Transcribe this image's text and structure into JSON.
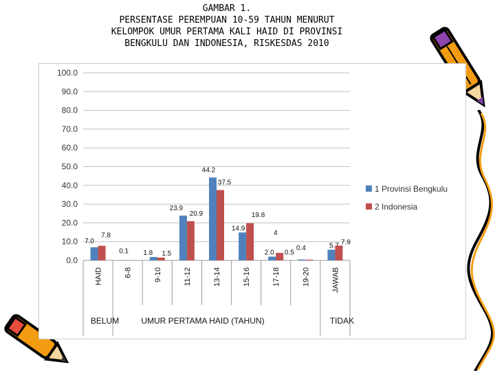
{
  "title": {
    "line1": "GAMBAR 1.",
    "line2": "PERSENTASE PEREMPUAN 10-59 TAHUN MENURUT",
    "line3": "KELOMPOK UMUR PERTAMA KALI HAID DI PROVINSI",
    "line4": "BENGKULU DAN INDONESIA, RISKESDAS 2010"
  },
  "chart_data": {
    "type": "bar",
    "categories": [
      "HAID",
      "6-8",
      "9-10",
      "11-12",
      "13-14",
      "15-16",
      "17-18",
      "19-20",
      "JAWAB"
    ],
    "category_groups": [
      {
        "label": "BELUM",
        "categories": [
          "HAID"
        ]
      },
      {
        "label": "UMUR PERTAMA HAID (TAHUN)",
        "categories": [
          "6-8",
          "9-10",
          "11-12",
          "13-14",
          "15-16",
          "17-18",
          "19-20"
        ]
      },
      {
        "label": "TIDAK",
        "categories": [
          "JAWAB"
        ]
      }
    ],
    "series": [
      {
        "name": "1 Provinsi Bengkulu",
        "color": "#4F81BD",
        "values": [
          7.0,
          0.1,
          1.8,
          23.9,
          44.2,
          14.9,
          2.0,
          0.5,
          5.7
        ],
        "labels": [
          "7.0",
          "0.1",
          "1.8",
          "23.9",
          "44.2",
          "14.9",
          "2.0",
          "0.5",
          "5.7"
        ]
      },
      {
        "name": "2 Indonesia",
        "color": "#C0504D",
        "values": [
          7.8,
          0.0,
          1.5,
          20.9,
          37.5,
          19.8,
          4.0,
          0.4,
          7.9
        ],
        "labels": [
          "7.8",
          "",
          "1.5",
          "20.9",
          "37.5",
          "19.8",
          "4",
          "0.4",
          "7.9"
        ]
      }
    ],
    "ylim": [
      0,
      100
    ],
    "yticks": [
      "0.0",
      "10.0",
      "20.0",
      "30.0",
      "40.0",
      "50.0",
      "60.0",
      "70.0",
      "80.0",
      "90.0",
      "100.0"
    ],
    "grid": true,
    "legend": "right"
  },
  "decorations": {
    "pencil_color": "#F39C12",
    "pencil_outline": "#000000",
    "pencil_tip": "#7B3FA0"
  }
}
